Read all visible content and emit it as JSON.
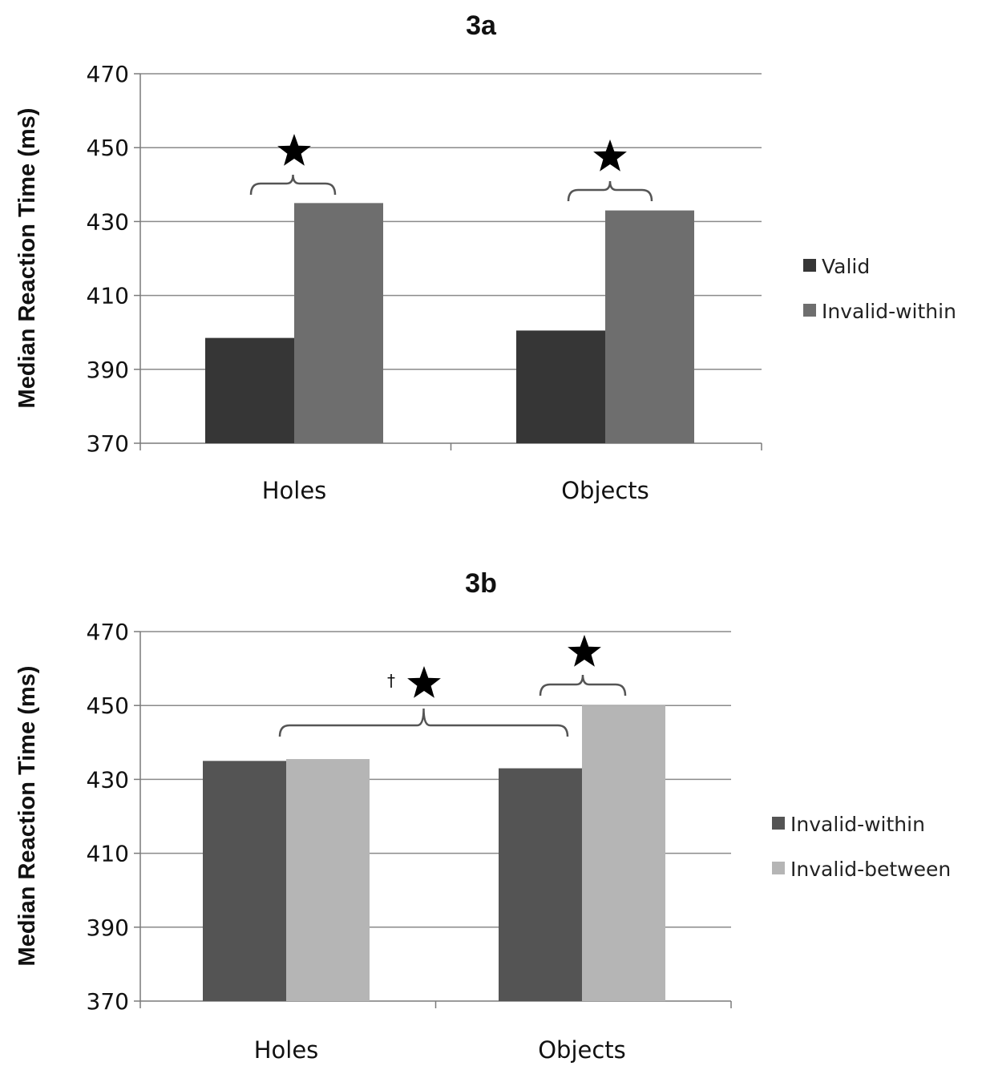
{
  "chart_data": [
    {
      "id": "3a",
      "type": "bar",
      "title": "3a",
      "ylabel": "Median Reaction Time (ms)",
      "xlabel": "",
      "ylim": [
        370,
        470
      ],
      "yticks": [
        370,
        390,
        410,
        430,
        450,
        470
      ],
      "grid": true,
      "legend_position": "right",
      "categories": [
        "Holes",
        "Objects"
      ],
      "series": [
        {
          "name": "Valid",
          "color": "#363636",
          "values": [
            398.5,
            400.5
          ]
        },
        {
          "name": "Invalid-within",
          "color": "#6e6e6e",
          "values": [
            435,
            433
          ]
        }
      ],
      "annotations": [
        {
          "type": "significance",
          "symbol": "★",
          "category": "Holes",
          "between": [
            "Valid",
            "Invalid-within"
          ]
        },
        {
          "type": "significance",
          "symbol": "★",
          "category": "Objects",
          "between": [
            "Valid",
            "Invalid-within"
          ]
        }
      ]
    },
    {
      "id": "3b",
      "type": "bar",
      "title": "3b",
      "ylabel": "Median Reaction Time (ms)",
      "xlabel": "",
      "ylim": [
        370,
        470
      ],
      "yticks": [
        370,
        390,
        410,
        430,
        450,
        470
      ],
      "grid": true,
      "legend_position": "right",
      "categories": [
        "Holes",
        "Objects"
      ],
      "series": [
        {
          "name": "Invalid-within",
          "color": "#545454",
          "values": [
            435,
            433
          ]
        },
        {
          "name": "Invalid-between",
          "color": "#b5b5b5",
          "values": [
            435.5,
            450
          ]
        }
      ],
      "annotations": [
        {
          "type": "significance",
          "symbol": "★",
          "dagger": "†",
          "between_categories": [
            "Holes",
            "Objects"
          ]
        },
        {
          "type": "significance",
          "symbol": "★",
          "category": "Objects",
          "between": [
            "Invalid-within",
            "Invalid-between"
          ]
        }
      ]
    }
  ]
}
